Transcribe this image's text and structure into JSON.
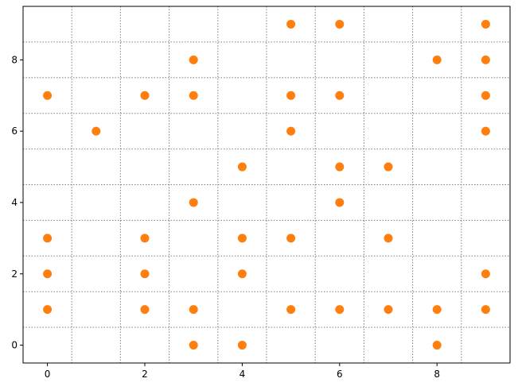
{
  "chart_data": {
    "type": "scatter",
    "x": [
      5,
      6,
      9,
      3,
      8,
      9,
      0,
      2,
      3,
      5,
      6,
      9,
      1,
      5,
      9,
      4,
      6,
      7,
      3,
      6,
      0,
      2,
      4,
      5,
      7,
      0,
      2,
      4,
      9,
      0,
      2,
      3,
      5,
      6,
      7,
      8,
      9,
      3,
      4,
      8
    ],
    "y": [
      9,
      9,
      9,
      8,
      8,
      8,
      7,
      7,
      7,
      7,
      7,
      7,
      6,
      6,
      6,
      5,
      5,
      5,
      4,
      4,
      3,
      3,
      3,
      3,
      3,
      2,
      2,
      2,
      2,
      1,
      1,
      1,
      1,
      1,
      1,
      1,
      1,
      0,
      0,
      0
    ],
    "color": "#ff7f0e",
    "xlim": [
      -0.5,
      9.5
    ],
    "ylim": [
      -0.5,
      9.5
    ],
    "xticks": [
      0,
      2,
      4,
      6,
      8
    ],
    "yticks": [
      0,
      2,
      4,
      6,
      8
    ],
    "xgrid": [
      0.5,
      1.5,
      2.5,
      3.5,
      4.5,
      5.5,
      6.5,
      7.5,
      8.5
    ],
    "ygrid": [
      0.5,
      1.5,
      2.5,
      3.5,
      4.5,
      5.5,
      6.5,
      7.5,
      8.5
    ]
  }
}
